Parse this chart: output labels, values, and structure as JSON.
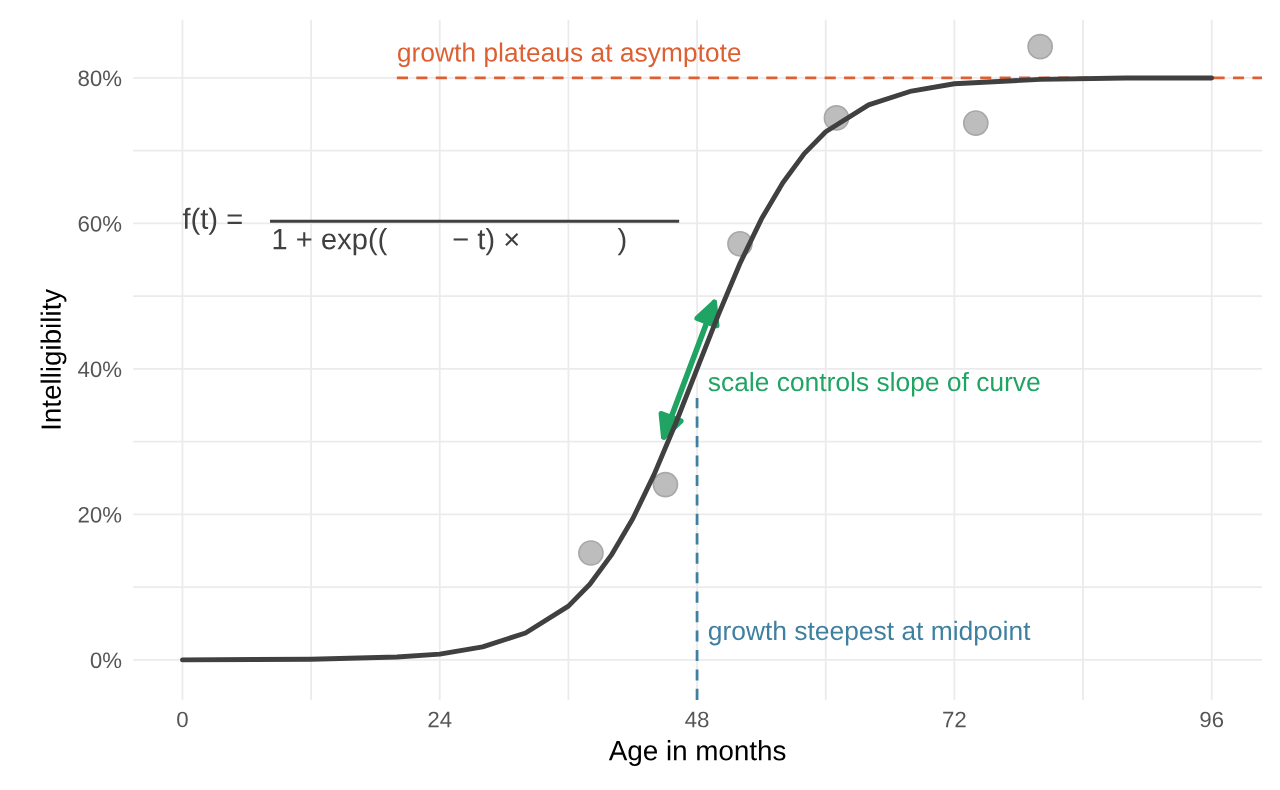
{
  "chart_data": {
    "type": "line",
    "xlabel": "Age in months",
    "ylabel": "Intelligibility",
    "annotations": [
      "f(t) =",
      "1 + exp((        − t) ×            )",
      "scale controls slope of curve"
    ],
    "series": [
      {
        "type": "scatter",
        "color": "#bdbdbd",
        "x": [
          38.1,
          45.05,
          52.0,
          61.0,
          74.0,
          80.0
        ],
        "values": [
          14.7,
          24.1,
          57.2,
          74.5,
          73.8,
          84.3
        ]
      },
      {
        "color": "#404040",
        "x": [
          0,
          12,
          20,
          24,
          28,
          32,
          36,
          38,
          40,
          42,
          44,
          46,
          48,
          50,
          52,
          54,
          56,
          58,
          60,
          64,
          68,
          72,
          80,
          88,
          96
        ],
        "values": [
          0,
          0.1,
          0.4,
          0.8,
          1.8,
          3.7,
          7.4,
          10.4,
          14.4,
          19.4,
          25.5,
          32.5,
          40,
          47.5,
          54.5,
          60.6,
          65.6,
          69.6,
          72.6,
          76.3,
          78.2,
          79.2,
          79.8,
          80,
          80
        ]
      }
    ],
    "ref_lines": [
      {
        "axis": "y",
        "value": 80,
        "label": "growth plateaus at asymptote",
        "color": "#dd5f32",
        "line_style": "dashed"
      },
      {
        "axis": "x",
        "value": 48,
        "label": "growth steepest at midpoint",
        "color": "#3f7fa0",
        "line_style": "dashed"
      }
    ],
    "xlim": [
      -4.6,
      100.7
    ],
    "ylim": [
      -5.5,
      88
    ],
    "xticks": [
      0,
      {
        "value": 12,
        "label": null
      },
      24,
      {
        "value": 36,
        "label": null
      },
      48,
      {
        "value": 60,
        "label": null
      },
      72,
      {
        "value": 84,
        "label": null
      },
      96
    ],
    "yticks": [
      {
        "value": 0,
        "label": "0%"
      },
      {
        "value": 10,
        "label": null
      },
      {
        "value": 20,
        "label": "20%"
      },
      {
        "value": 30,
        "label": null
      },
      {
        "value": 40,
        "label": "40%"
      },
      {
        "value": 50,
        "label": null
      },
      {
        "value": 60,
        "label": "60%"
      },
      {
        "value": 70,
        "label": null
      },
      {
        "value": 80,
        "label": "80%"
      }
    ],
    "grid": true,
    "legend": false
  }
}
